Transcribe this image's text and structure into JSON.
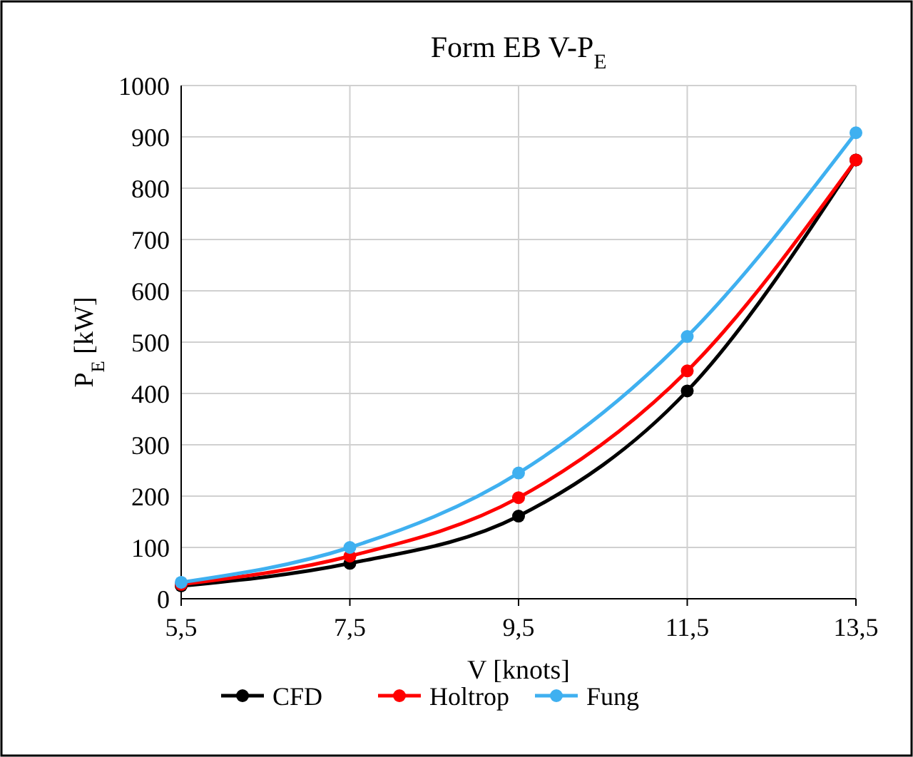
{
  "chart_data": {
    "type": "line",
    "title": "Form EB V-P$_{E}$",
    "xlabel": "V [knots]",
    "ylabel": "P$_{E}$ [kW]",
    "x": [
      5.5,
      7.5,
      9.5,
      11.5,
      13.5
    ],
    "xlim": [
      5.5,
      13.5
    ],
    "xticks": [
      {
        "value": 5.5,
        "label": "5,5"
      },
      {
        "value": 7.5,
        "label": "7,5"
      },
      {
        "value": 9.5,
        "label": "9,5"
      },
      {
        "value": 11.5,
        "label": "11,5"
      },
      {
        "value": 13.5,
        "label": "13,5"
      }
    ],
    "ylim": [
      0,
      1000
    ],
    "yticks": [
      0,
      100,
      200,
      300,
      400,
      500,
      600,
      700,
      800,
      900,
      1000
    ],
    "grid": true,
    "legend": "bottom",
    "marker": "circle",
    "line_style": "solid",
    "series": [
      {
        "name": "CFD",
        "color": "#000000",
        "values": [
          25,
          69,
          161,
          405,
          855
        ]
      },
      {
        "name": "Holtrop",
        "color": "#ff0000",
        "values": [
          28,
          83,
          197,
          444,
          855
        ]
      },
      {
        "name": "Fung",
        "color": "#3fb0f0",
        "values": [
          32,
          100,
          245,
          511,
          908
        ]
      }
    ]
  }
}
